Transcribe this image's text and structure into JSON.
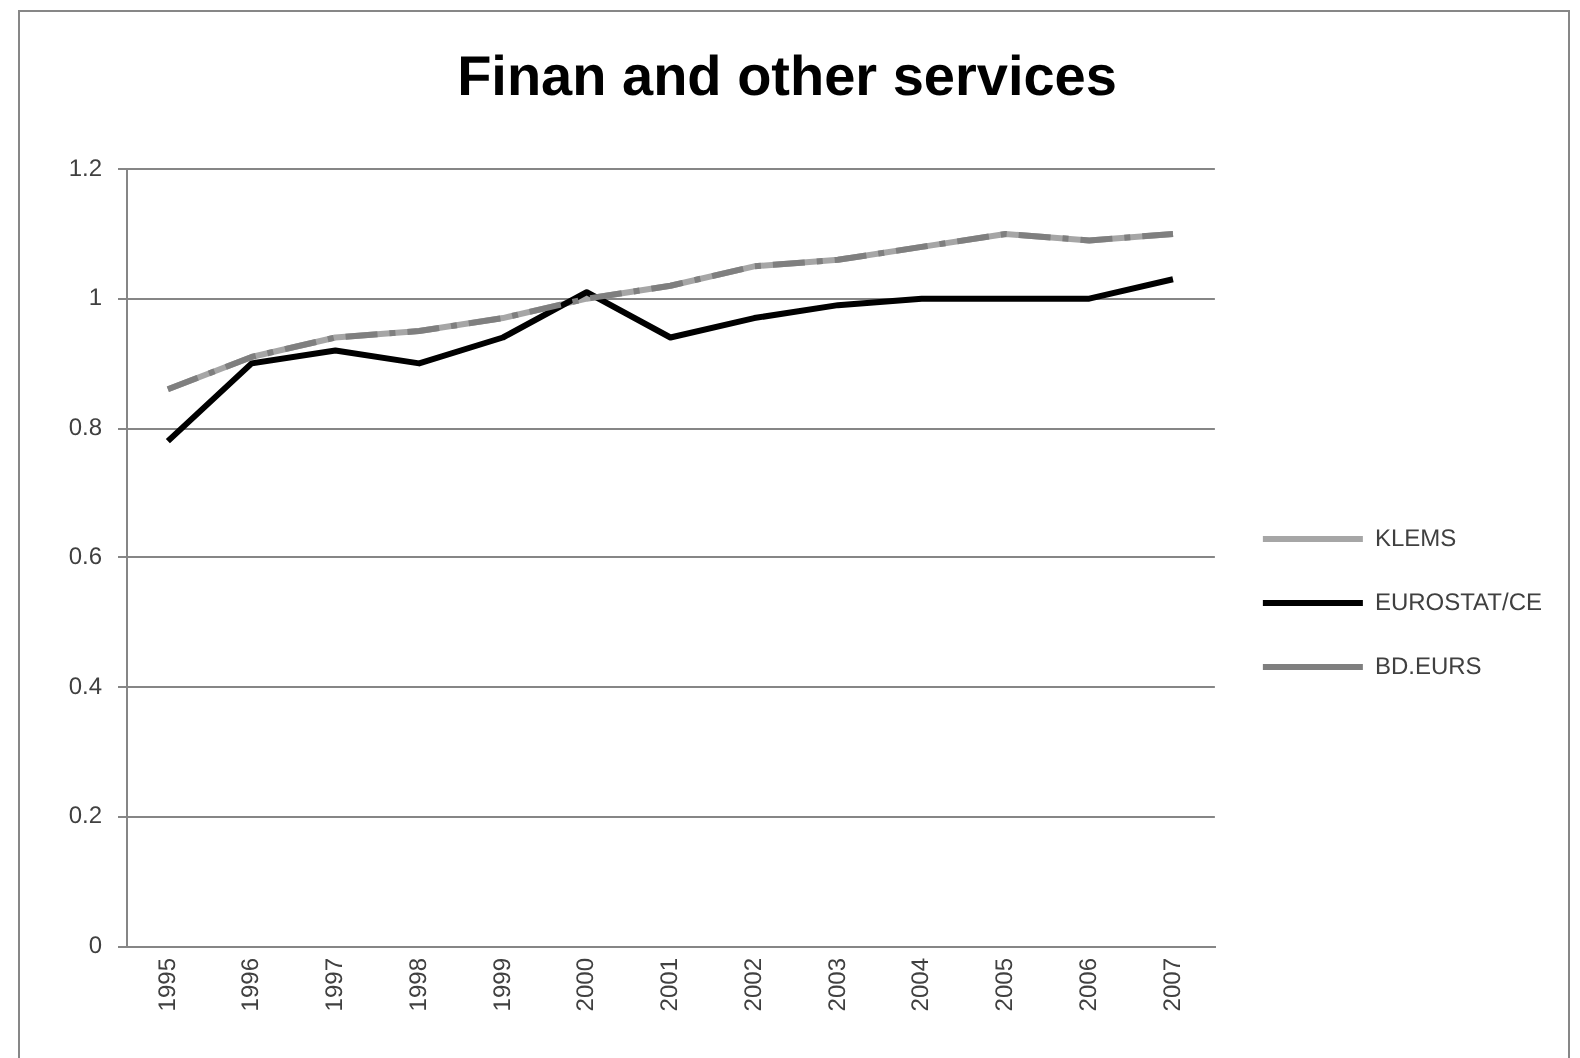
{
  "chart_data": {
    "type": "line",
    "title": "Finan and other services",
    "categories": [
      "1995",
      "1996",
      "1997",
      "1998",
      "1999",
      "2000",
      "2001",
      "2002",
      "2003",
      "2004",
      "2005",
      "2006",
      "2007"
    ],
    "series": [
      {
        "name": "KLEMS",
        "color": "#a6a6a6",
        "line_style": "solid",
        "values": [
          0.86,
          0.91,
          0.94,
          0.95,
          0.97,
          1.0,
          1.02,
          1.05,
          1.06,
          1.08,
          1.1,
          1.09,
          1.1
        ]
      },
      {
        "name": "EUROSTAT/CE",
        "color": "#000000",
        "line_style": "solid",
        "values": [
          0.78,
          0.9,
          0.92,
          0.9,
          0.94,
          1.01,
          0.94,
          0.97,
          0.99,
          1.0,
          1.0,
          1.0,
          1.03
        ]
      },
      {
        "name": "BD.EURS",
        "color": "#7f7f7f",
        "line_style": "dashed",
        "values": [
          0.86,
          0.91,
          0.94,
          0.95,
          0.97,
          1.0,
          1.02,
          1.05,
          1.06,
          1.08,
          1.1,
          1.09,
          1.1
        ]
      }
    ],
    "ylim": [
      0,
      1.2
    ],
    "yticks": [
      0,
      0.2,
      0.4,
      0.6,
      0.8,
      1,
      1.2
    ],
    "grid": "y",
    "legend": "right",
    "marker": "none"
  }
}
